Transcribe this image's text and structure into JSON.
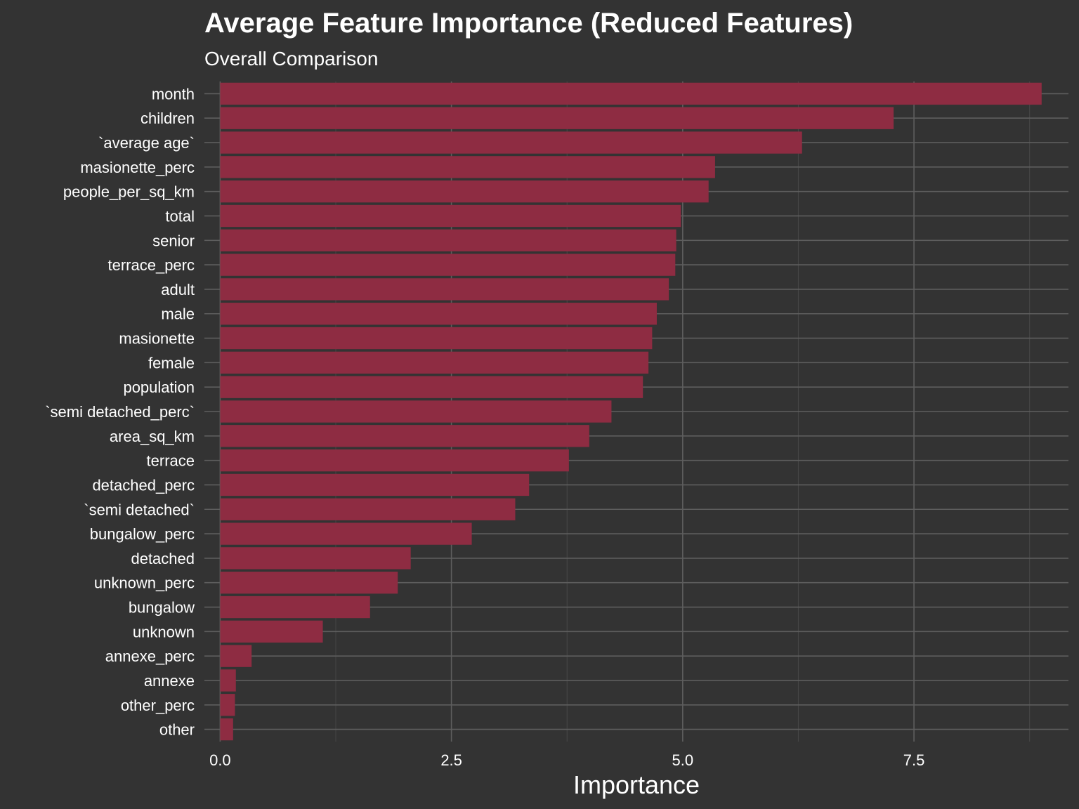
{
  "chart_data": {
    "type": "bar",
    "orientation": "horizontal",
    "title": "Average Feature Importance (Reduced Features)",
    "subtitle": "Overall Comparison",
    "xlabel": "Importance",
    "ylabel": "",
    "xlim": [
      -0.17,
      9.17
    ],
    "x_ticks": [
      0,
      2.5,
      5,
      7.5
    ],
    "x_tick_labels": [
      "0.0",
      "2.5",
      "5.0",
      "7.5"
    ],
    "grid": true,
    "legend": "none",
    "categories": [
      "month",
      "children",
      "`average age`",
      "masionette_perc",
      "people_per_sq_km",
      "total",
      "senior",
      "terrace_perc",
      "adult",
      "male",
      "masionette",
      "female",
      "population",
      "`semi detached_perc`",
      "area_sq_km",
      "terrace",
      "detached_perc",
      "`semi detached`",
      "bungalow_perc",
      "detached",
      "unknown_perc",
      "bungalow",
      "unknown",
      "annexe_perc",
      "annexe",
      "other_perc",
      "other"
    ],
    "values": [
      8.88,
      7.28,
      6.29,
      5.35,
      5.28,
      4.98,
      4.93,
      4.92,
      4.85,
      4.72,
      4.67,
      4.63,
      4.57,
      4.23,
      3.99,
      3.77,
      3.34,
      3.19,
      2.72,
      2.06,
      1.92,
      1.62,
      1.11,
      0.34,
      0.17,
      0.16,
      0.14
    ]
  },
  "colors": {
    "background": "#333333",
    "bar": "#8e2c42",
    "grid_major": "#5e5e5e",
    "grid_minor": "#474747",
    "text": "#ffffff"
  }
}
